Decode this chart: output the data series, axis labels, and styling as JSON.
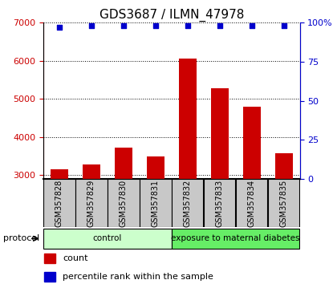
{
  "title": "GDS3687 / ILMN_47978",
  "samples": [
    "GSM357828",
    "GSM357829",
    "GSM357830",
    "GSM357831",
    "GSM357832",
    "GSM357833",
    "GSM357834",
    "GSM357835"
  ],
  "counts": [
    3150,
    3280,
    3720,
    3490,
    6050,
    5270,
    4790,
    3580
  ],
  "percentile_ranks": [
    97,
    98,
    98,
    98,
    98,
    98,
    98,
    98
  ],
  "ylim_left": [
    2900,
    7000
  ],
  "ylim_right": [
    0,
    100
  ],
  "yticks_left": [
    3000,
    4000,
    5000,
    6000,
    7000
  ],
  "yticks_right": [
    0,
    25,
    50,
    75,
    100
  ],
  "bar_color": "#cc0000",
  "dot_color": "#0000cc",
  "bar_width": 0.55,
  "groups": [
    {
      "label": "control",
      "indices": [
        0,
        1,
        2,
        3
      ],
      "color": "#ccffcc"
    },
    {
      "label": "exposure to maternal diabetes",
      "indices": [
        4,
        5,
        6,
        7
      ],
      "color": "#66ee66"
    }
  ],
  "protocol_label": "protocol",
  "legend_count_label": "count",
  "legend_percentile_label": "percentile rank within the sample",
  "grid_color": "black",
  "title_fontsize": 11,
  "tick_fontsize": 8,
  "sample_label_fontsize": 7,
  "left_tick_color": "#cc0000",
  "right_tick_color": "#0000cc",
  "sample_box_color": "#c8c8c8",
  "right_axis_label": "100%"
}
